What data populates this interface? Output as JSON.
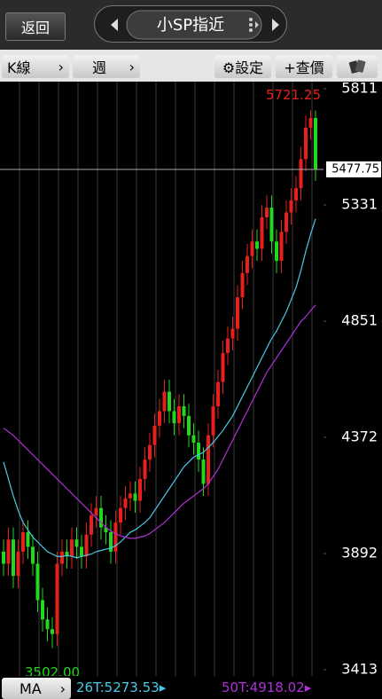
{
  "ui": {
    "back": "返回",
    "title": "小SP指近",
    "period_type": "K線",
    "period": "週",
    "settings": "⚙設定",
    "quote": "+查價",
    "indicator": "MA"
  },
  "chart_data": {
    "type": "candlestick",
    "open": [
      3900,
      3850,
      3950,
      3800,
      3900,
      3980,
      3920,
      3850,
      3700,
      3620,
      3580,
      3560,
      3850,
      3900,
      3880,
      3950,
      3920,
      3880,
      3970,
      4050,
      4080,
      4000,
      3980,
      3900,
      4020,
      4080,
      4120,
      4140,
      4110,
      4200,
      4280,
      4340,
      4420,
      4480,
      4560,
      4480,
      4430,
      4500,
      4460,
      4380,
      4350,
      4280,
      4180,
      4380,
      4500,
      4600,
      4720,
      4780,
      4820,
      4950,
      5050,
      5120,
      5180,
      5150,
      5280,
      5320,
      5180,
      5100,
      5220,
      5300,
      5350,
      5400,
      5520,
      5650,
      5690
    ],
    "high": [
      3950,
      4000,
      4000,
      3950,
      4030,
      4030,
      3970,
      3900,
      3750,
      3670,
      3630,
      3900,
      3950,
      3950,
      4000,
      4000,
      3970,
      4020,
      4100,
      4130,
      4130,
      4050,
      4030,
      4070,
      4130,
      4170,
      4190,
      4190,
      4250,
      4330,
      4390,
      4470,
      4530,
      4610,
      4610,
      4530,
      4550,
      4550,
      4510,
      4430,
      4400,
      4330,
      4430,
      4550,
      4650,
      4770,
      4830,
      4870,
      5000,
      5100,
      5170,
      5230,
      5230,
      5330,
      5370,
      5370,
      5230,
      5270,
      5350,
      5400,
      5450,
      5570,
      5700,
      5721.25,
      5720
    ],
    "low": [
      3800,
      3800,
      3750,
      3750,
      3850,
      3870,
      3800,
      3650,
      3570,
      3530,
      3502,
      3510,
      3800,
      3830,
      3830,
      3870,
      3830,
      3830,
      3920,
      4000,
      3950,
      3930,
      3850,
      3850,
      3970,
      4030,
      4070,
      4060,
      4060,
      4150,
      4230,
      4290,
      4370,
      4430,
      4430,
      4380,
      4380,
      4410,
      4330,
      4300,
      4230,
      4130,
      4130,
      4330,
      4450,
      4550,
      4670,
      4730,
      4770,
      4900,
      5000,
      5070,
      5100,
      5100,
      5230,
      5130,
      5050,
      5050,
      5170,
      5250,
      5300,
      5350,
      5470,
      5600,
      5430
    ],
    "close": [
      3850,
      3950,
      3800,
      3900,
      3980,
      3920,
      3850,
      3700,
      3620,
      3580,
      3560,
      3850,
      3900,
      3880,
      3950,
      3920,
      3880,
      3970,
      4050,
      4080,
      4000,
      3980,
      3900,
      4020,
      4080,
      4120,
      4140,
      4110,
      4200,
      4280,
      4340,
      4420,
      4480,
      4560,
      4480,
      4430,
      4500,
      4460,
      4380,
      4350,
      4280,
      4180,
      4380,
      4500,
      4600,
      4720,
      4780,
      4820,
      4950,
      5050,
      5120,
      5180,
      5150,
      5280,
      5320,
      5180,
      5100,
      5220,
      5300,
      5350,
      5400,
      5520,
      5650,
      5690,
      5477.75
    ],
    "up_color": "#e8201c",
    "down_color": "#22d81e",
    "series": [
      {
        "name": "26T",
        "color": "#49c8e8",
        "values": [
          4270,
          4200,
          4130,
          4070,
          4020,
          3990,
          3960,
          3940,
          3920,
          3900,
          3890,
          3880,
          3880,
          3885,
          3880,
          3875,
          3880,
          3885,
          3890,
          3900,
          3905,
          3910,
          3915,
          3925,
          3940,
          3960,
          3980,
          3990,
          4005,
          4020,
          4040,
          4070,
          4100,
          4130,
          4160,
          4190,
          4220,
          4250,
          4270,
          4290,
          4300,
          4310,
          4330,
          4350,
          4375,
          4400,
          4430,
          4460,
          4500,
          4540,
          4580,
          4620,
          4660,
          4700,
          4740,
          4780,
          4810,
          4850,
          4890,
          4940,
          4990,
          5060,
          5140,
          5210,
          5273.53
        ]
      },
      {
        "name": "50T",
        "color": "#b030d8",
        "values": [
          4410,
          4395,
          4380,
          4360,
          4340,
          4320,
          4300,
          4280,
          4260,
          4240,
          4220,
          4200,
          4180,
          4160,
          4140,
          4120,
          4100,
          4080,
          4060,
          4040,
          4020,
          4000,
          3985,
          3975,
          3965,
          3960,
          3955,
          3955,
          3960,
          3965,
          3975,
          3990,
          4005,
          4020,
          4040,
          4060,
          4080,
          4100,
          4115,
          4130,
          4145,
          4160,
          4180,
          4210,
          4240,
          4280,
          4320,
          4360,
          4400,
          4440,
          4480,
          4520,
          4560,
          4600,
          4640,
          4670,
          4700,
          4730,
          4760,
          4790,
          4820,
          4850,
          4870,
          4895,
          4918.02
        ]
      }
    ],
    "annotations": [
      {
        "value": 5721.25,
        "label": "5721.25",
        "color": "#e8201c"
      },
      {
        "value": 3502,
        "label": "3502.00",
        "color": "#22d81e"
      }
    ],
    "ylim": [
      3387,
      5840
    ],
    "yticks": [
      5811,
      5331,
      4851,
      4372,
      3892,
      3413
    ]
  }
}
